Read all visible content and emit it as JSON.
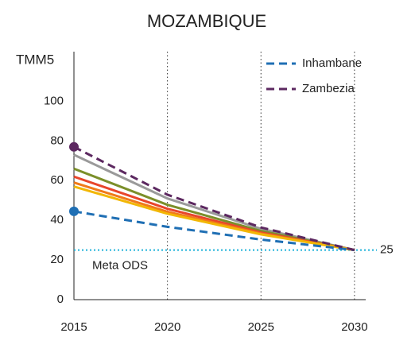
{
  "chart_data": {
    "type": "line",
    "title": "MOZAMBIQUE",
    "y_label": "TMM5",
    "x": [
      2015,
      2020,
      2025,
      2030
    ],
    "series": [
      {
        "color": "#9a9a9a",
        "values": [
          73,
          51,
          35.7,
          25
        ]
      },
      {
        "color": "#7b8f2a",
        "values": [
          66,
          47.8,
          34.6,
          25
        ]
      },
      {
        "color": "#e8452b",
        "values": [
          62,
          45.8,
          33.8,
          25
        ]
      },
      {
        "color": "#f07a1a",
        "values": [
          59,
          44.3,
          33.3,
          25
        ]
      },
      {
        "color": "#f2b705",
        "values": [
          57,
          43.3,
          32.9,
          25
        ]
      },
      {
        "name": "Inhambane",
        "color": "#1f6fb4",
        "dashed": true,
        "marker_first": true,
        "values": [
          44.5,
          36.7,
          30.3,
          25
        ]
      },
      {
        "name": "Zambezia",
        "color": "#5c2860",
        "dashed": true,
        "marker_first": true,
        "values": [
          77,
          52.9,
          36.4,
          25
        ]
      }
    ],
    "target": {
      "value": 25,
      "label": "Meta ODS",
      "color": "#1fb2d9"
    },
    "xlim": [
      2015,
      2030.6
    ],
    "xticks": [
      2015,
      2020,
      2025,
      2030
    ],
    "ylim": [
      0,
      125
    ],
    "yticks": [
      0,
      20,
      40,
      60,
      80,
      100
    ],
    "grid": "x",
    "legend": "top-right"
  }
}
